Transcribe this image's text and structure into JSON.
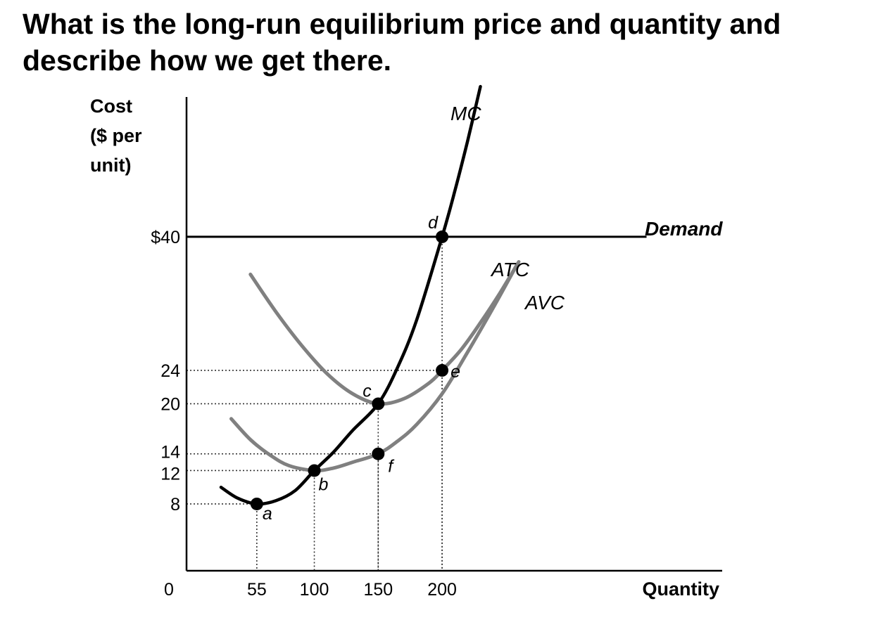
{
  "question": {
    "line1": "What is the long-run equilibrium price and quantity and",
    "line2": "describe how we get there."
  },
  "chart_data": {
    "type": "line",
    "ylabel_lines": [
      "Cost",
      "($ per",
      "unit)"
    ],
    "xlabel": "Quantity",
    "origin_label": "0",
    "x_ticks": [
      {
        "value": 55,
        "label": "55"
      },
      {
        "value": 100,
        "label": "100"
      },
      {
        "value": 150,
        "label": "150"
      },
      {
        "value": 200,
        "label": "200"
      }
    ],
    "y_ticks": [
      {
        "value": 8,
        "label": "8"
      },
      {
        "value": 12,
        "label": "12"
      },
      {
        "value": 14,
        "label": "14"
      },
      {
        "value": 20,
        "label": "20"
      },
      {
        "value": 24,
        "label": "24"
      },
      {
        "value": 40,
        "label": "$40"
      }
    ],
    "xlim": [
      0,
      420
    ],
    "ylim": [
      0,
      55
    ],
    "series": [
      {
        "name": "MC",
        "color": "#000000",
        "x": [
          27,
          40,
          55,
          70,
          85,
          100,
          115,
          130,
          150,
          165,
          180,
          200,
          210,
          220,
          230
        ],
        "y": [
          10,
          8.7,
          8,
          8.4,
          9.6,
          12,
          14.2,
          16.8,
          20,
          24.3,
          30,
          40,
          45.5,
          51.5,
          58
        ]
      },
      {
        "name": "ATC",
        "color": "#808080",
        "x": [
          50,
          70,
          90,
          110,
          130,
          150,
          170,
          190,
          200,
          215,
          230,
          245,
          260
        ],
        "y": [
          35.5,
          31,
          27,
          23.6,
          21.2,
          20,
          20.6,
          22.5,
          24,
          26.5,
          29.7,
          33.2,
          37
        ]
      },
      {
        "name": "AVC",
        "color": "#808080",
        "x": [
          35,
          50,
          65,
          80,
          100,
          115,
          130,
          150,
          165,
          180,
          200,
          220,
          240,
          258
        ],
        "y": [
          18.2,
          15.7,
          13.9,
          12.6,
          12,
          12.3,
          13,
          14,
          15.5,
          17.5,
          21.2,
          26.2,
          31.5,
          36.5
        ]
      },
      {
        "name": "Demand",
        "color": "#000000",
        "x": [
          0,
          360
        ],
        "y": [
          40,
          40
        ]
      }
    ],
    "points": [
      {
        "label": "a",
        "x": 55,
        "y": 8
      },
      {
        "label": "b",
        "x": 100,
        "y": 12
      },
      {
        "label": "c",
        "x": 150,
        "y": 20
      },
      {
        "label": "d",
        "x": 200,
        "y": 40
      },
      {
        "label": "e",
        "x": 200,
        "y": 24
      },
      {
        "label": "f",
        "x": 150,
        "y": 14
      }
    ],
    "grid": false
  }
}
